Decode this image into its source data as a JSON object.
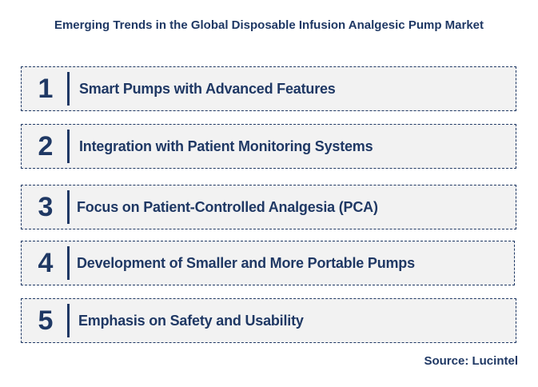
{
  "title": "Emerging Trends in the Global Disposable Infusion Analgesic Pump Market",
  "items": [
    {
      "number": "1",
      "label": "Smart Pumps with Advanced Features"
    },
    {
      "number": "2",
      "label": "Integration with Patient Monitoring Systems"
    },
    {
      "number": "3",
      "label": "Focus on Patient-Controlled Analgesia (PCA)"
    },
    {
      "number": "4",
      "label": "Development of Smaller and More Portable Pumps"
    },
    {
      "number": "5",
      "label": "Emphasis on Safety and Usability"
    }
  ],
  "source": "Source: Lucintel",
  "colors": {
    "primary": "#1f3864",
    "box_fill": "#f2f2f2"
  }
}
